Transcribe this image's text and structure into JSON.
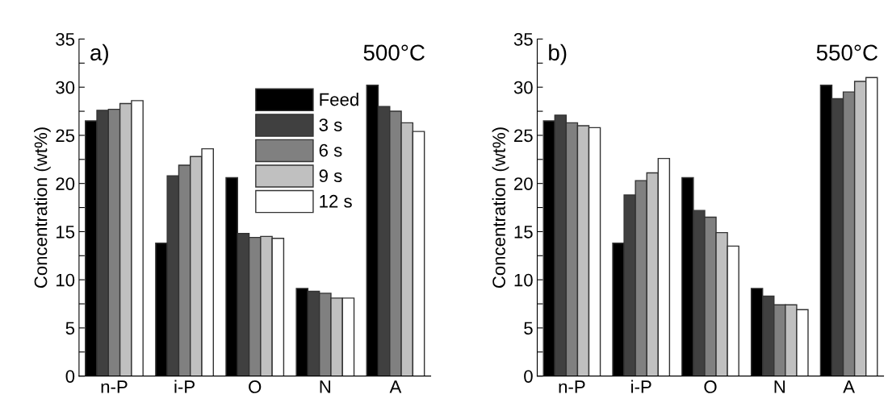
{
  "chart_data": [
    {
      "type": "bar",
      "ylabel": "Concentration (wt%)",
      "categories": [
        "n-P",
        "i-P",
        "O",
        "N",
        "A"
      ],
      "series": [
        {
          "name": "Feed",
          "color": "#000000",
          "values": [
            26.5,
            13.8,
            20.6,
            9.1,
            30.2
          ]
        },
        {
          "name": "3 s",
          "color": "#404040",
          "values": [
            27.6,
            20.8,
            14.8,
            8.8,
            28.0
          ]
        },
        {
          "name": "6 s",
          "color": "#808080",
          "values": [
            27.7,
            21.9,
            14.4,
            8.6,
            27.5
          ]
        },
        {
          "name": "9 s",
          "color": "#c0c0c0",
          "values": [
            28.3,
            22.8,
            14.5,
            8.1,
            26.3
          ]
        },
        {
          "name": "12 s",
          "color": "#ffffff",
          "values": [
            28.6,
            23.6,
            14.3,
            8.1,
            25.4
          ]
        }
      ],
      "ylim": [
        0,
        35
      ],
      "yticks": [
        0,
        {
          "value": 2.5,
          "label": null
        },
        5,
        {
          "value": 7.5,
          "label": null
        },
        10,
        {
          "value": 12.5,
          "label": null
        },
        15,
        {
          "value": 17.5,
          "label": null
        },
        20,
        {
          "value": 22.5,
          "label": null
        },
        25,
        {
          "value": 27.5,
          "label": null
        },
        30,
        {
          "value": 32.5,
          "label": null
        },
        35
      ],
      "annotations": [
        "a)",
        "500°C"
      ],
      "legend": "top",
      "grid": false
    },
    {
      "type": "bar",
      "ylabel": "Concentration (wt%)",
      "categories": [
        "n-P",
        "i-P",
        "O",
        "N",
        "A"
      ],
      "series": [
        {
          "color": "#000000",
          "values": [
            26.5,
            13.8,
            20.6,
            9.1,
            30.2
          ]
        },
        {
          "color": "#404040",
          "values": [
            27.1,
            18.8,
            17.2,
            8.3,
            28.8
          ]
        },
        {
          "color": "#808080",
          "values": [
            26.3,
            20.3,
            16.5,
            7.4,
            29.5
          ]
        },
        {
          "color": "#c0c0c0",
          "values": [
            26.0,
            21.1,
            14.9,
            7.4,
            30.6
          ]
        },
        {
          "color": "#ffffff",
          "values": [
            25.8,
            22.6,
            13.5,
            6.9,
            31.0
          ]
        }
      ],
      "ylim": [
        0,
        35
      ],
      "yticks": [
        0,
        {
          "value": 2.5,
          "label": null
        },
        5,
        {
          "value": 7.5,
          "label": null
        },
        10,
        {
          "value": 12.5,
          "label": null
        },
        15,
        {
          "value": 17.5,
          "label": null
        },
        20,
        {
          "value": 22.5,
          "label": null
        },
        25,
        {
          "value": 27.5,
          "label": null
        },
        30,
        {
          "value": 32.5,
          "label": null
        },
        35
      ],
      "annotations": [
        "b)",
        "550°C"
      ],
      "grid": false
    }
  ]
}
